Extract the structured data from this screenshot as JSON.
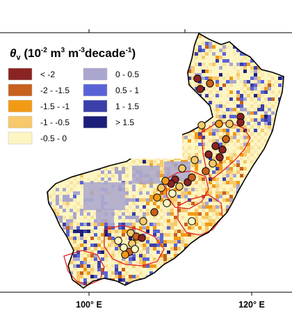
{
  "legend": {
    "title_symbol": "θ",
    "title_subscript": "v",
    "title_rest": " (10",
    "title_exp1": "-2",
    "title_unit": " m",
    "title_exp2": "3",
    "title_unit2": " m",
    "title_exp3": "-3",
    "title_unit3": "decade",
    "title_exp4": "-1",
    "title_close": ")",
    "items_left": [
      {
        "label": "< -2",
        "color": "#8b2323"
      },
      {
        "label": "-2 - -1.5",
        "color": "#c8601e"
      },
      {
        "label": "-1.5 - -1",
        "color": "#f29a16"
      },
      {
        "label": "-1 - -0.5",
        "color": "#f7c96b"
      },
      {
        "label": "-0.5 - 0",
        "color": "#fdf6c3"
      }
    ],
    "items_right": [
      {
        "label": "0 - 0.5",
        "color": "#a9a6cf"
      },
      {
        "label": "0.5 - 1",
        "color": "#5a63d6"
      },
      {
        "label": "1 - 1.5",
        "color": "#3a3fa9"
      },
      {
        "label": "> 1.5",
        "color": "#1c1f7a"
      }
    ]
  },
  "axis": {
    "x_ticks": [
      "100° E",
      "120° E"
    ]
  },
  "colors": {
    "boundary": "#000000",
    "sub_region": "#e0202a",
    "background": "#ffffff"
  }
}
